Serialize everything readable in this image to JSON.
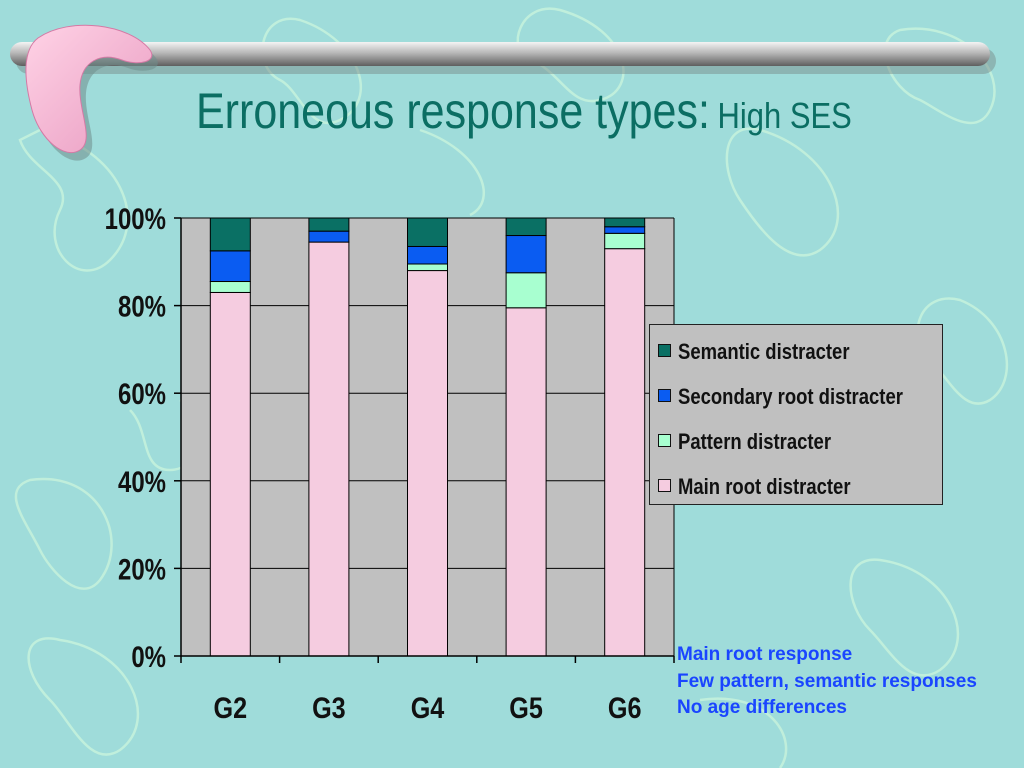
{
  "slide": {
    "title_main": "Erroneous response types:",
    "title_sub": "High SES"
  },
  "colors": {
    "background": "#9fdcda",
    "plot_area": "#c0c0c0",
    "title": "#0b6e63",
    "notes": "#1a45ff"
  },
  "chart_data": {
    "type": "bar",
    "stacked": true,
    "percent_stacked": true,
    "categories": [
      "G2",
      "G3",
      "G4",
      "G5",
      "G6"
    ],
    "series": [
      {
        "name": "Main root distracter",
        "color": "#f5cce0",
        "values": [
          83,
          94.5,
          88,
          79.5,
          93
        ]
      },
      {
        "name": "Pattern distracter",
        "color": "#a8ffd0",
        "values": [
          2.5,
          0,
          1.5,
          8,
          3.5
        ]
      },
      {
        "name": "Secondary root distracter",
        "color": "#0a5cf2",
        "values": [
          7,
          2.5,
          4,
          8.5,
          1.5
        ]
      },
      {
        "name": "Semantic distracter",
        "color": "#0a7064",
        "values": [
          7.5,
          3,
          6.5,
          4,
          2
        ]
      }
    ],
    "legend_order": [
      "Semantic distracter",
      "Secondary root distracter",
      "Pattern distracter",
      "Main root distracter"
    ],
    "legend_position": "right",
    "ylim": [
      0,
      100
    ],
    "yticks": [
      "0%",
      "20%",
      "40%",
      "60%",
      "80%",
      "100%"
    ],
    "grid": true,
    "xlabel": "",
    "ylabel": ""
  },
  "notes": [
    "Main root response",
    "Few pattern, semantic responses",
    "No age differences"
  ]
}
